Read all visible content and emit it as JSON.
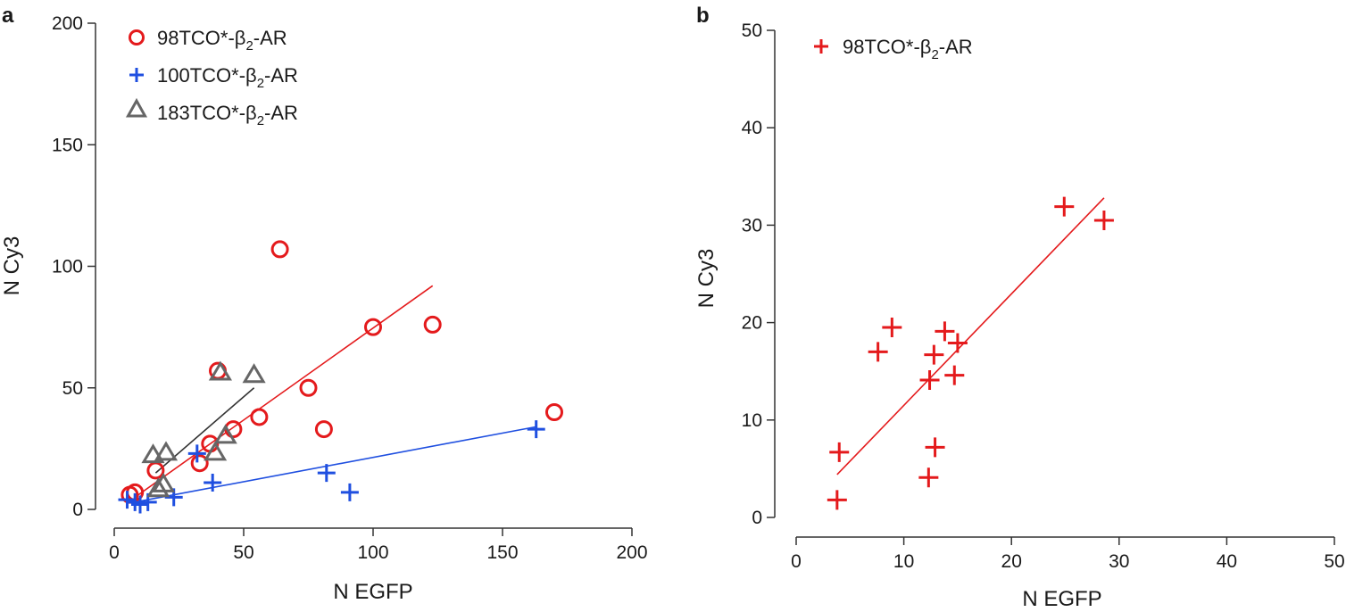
{
  "chart_data": [
    {
      "panel": "a",
      "type": "scatter",
      "xlabel": "N EGFP",
      "ylabel": "N Cy3",
      "xlim": [
        0,
        200
      ],
      "ylim": [
        0,
        200
      ],
      "xticks": [
        0,
        50,
        100,
        150,
        200
      ],
      "yticks": [
        0,
        50,
        100,
        150,
        200
      ],
      "grid": false,
      "legend_position": "top-left",
      "series": [
        {
          "name": "98TCO*-β2-AR",
          "label_main": "98TCO*-β",
          "label_sub": "2",
          "label_tail": "-AR",
          "marker": "circle",
          "color": "#e41a1c",
          "points": [
            [
              6,
              6
            ],
            [
              8,
              7
            ],
            [
              16,
              16
            ],
            [
              33,
              19
            ],
            [
              37,
              27
            ],
            [
              40,
              57
            ],
            [
              46,
              33
            ],
            [
              56,
              38
            ],
            [
              64,
              107
            ],
            [
              75,
              50
            ],
            [
              81,
              33
            ],
            [
              100,
              75
            ],
            [
              123,
              76
            ],
            [
              170,
              40
            ]
          ],
          "fit": [
            [
              8,
              5
            ],
            [
              123,
              92
            ]
          ]
        },
        {
          "name": "100TCO*-β2-AR",
          "label_main": "100TCO*-β",
          "label_sub": "2",
          "label_tail": "-AR",
          "marker": "plus",
          "color": "#1f4fe0",
          "points": [
            [
              5,
              4
            ],
            [
              8,
              3
            ],
            [
              10,
              2
            ],
            [
              13,
              3
            ],
            [
              23,
              5
            ],
            [
              32,
              23
            ],
            [
              38,
              11
            ],
            [
              82,
              15
            ],
            [
              91,
              7
            ],
            [
              163,
              33
            ]
          ],
          "fit": [
            [
              8,
              3
            ],
            [
              163,
              34
            ]
          ]
        },
        {
          "name": "183TCO*-β2-AR",
          "label_main": "183TCO*-β",
          "label_sub": "2",
          "label_tail": "-AR",
          "marker": "triangle",
          "color": "#666666",
          "points": [
            [
              15,
              22
            ],
            [
              17,
              8
            ],
            [
              19,
              10
            ],
            [
              20,
              23
            ],
            [
              39,
              23
            ],
            [
              41,
              56
            ],
            [
              43,
              30
            ],
            [
              54,
              55
            ]
          ],
          "fit": [
            [
              16,
              15
            ],
            [
              54,
              50
            ]
          ]
        }
      ]
    },
    {
      "panel": "b",
      "type": "scatter",
      "xlabel": "N EGFP",
      "ylabel": "N Cy3",
      "xlim": [
        0,
        50
      ],
      "ylim": [
        0,
        50
      ],
      "xticks": [
        0,
        10,
        20,
        30,
        40,
        50
      ],
      "yticks": [
        0,
        10,
        20,
        30,
        40,
        50
      ],
      "grid": false,
      "legend_position": "top-left",
      "series": [
        {
          "name": "98TCO*-β2-AR",
          "label_main": "98TCO*-β",
          "label_sub": "2",
          "label_tail": "-AR",
          "marker": "plus",
          "color": "#e41a1c",
          "points": [
            [
              3.8,
              1.8
            ],
            [
              4.0,
              6.7
            ],
            [
              7.6,
              17.0
            ],
            [
              8.9,
              19.5
            ],
            [
              12.3,
              4.1
            ],
            [
              12.4,
              14.1
            ],
            [
              12.8,
              16.7
            ],
            [
              12.9,
              7.2
            ],
            [
              13.8,
              19.1
            ],
            [
              14.7,
              14.6
            ],
            [
              15.0,
              17.9
            ],
            [
              24.9,
              31.9
            ],
            [
              28.6,
              30.5
            ]
          ],
          "fit": [
            [
              3.8,
              4.4
            ],
            [
              28.6,
              32.8
            ]
          ]
        }
      ]
    }
  ]
}
